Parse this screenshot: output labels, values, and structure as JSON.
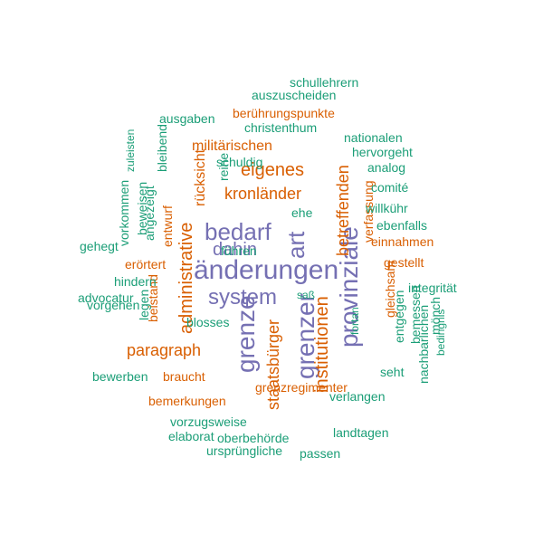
{
  "colors": {
    "purple": "#7570b3",
    "orange": "#d95f02",
    "teal": "#1b9e77"
  },
  "words": [
    "änderungen",
    "system",
    "bedarf",
    "art",
    "grenze",
    "grenzer",
    "provinziale",
    "dahin",
    "staatsbürger",
    "institutionen",
    "administrative",
    "betreffenden",
    "eigenes",
    "kronländer",
    "paragraph",
    "rücksicht",
    "militärischen",
    "berührungspunkte",
    "beistand",
    "gestellt",
    "einnahmen",
    "verfassung",
    "grenzregimenter",
    "bemerkungen",
    "braucht",
    "entwurf",
    "erörtert",
    "gleichsam",
    "nachbarlichen",
    "mönch",
    "bedingnis",
    "schuldig",
    "nationalen",
    "christenthum",
    "auszuscheiden",
    "schullehrern",
    "ausgaben",
    "hervorgeht",
    "analog",
    "comité",
    "ebenfalls",
    "integrität",
    "willkühr",
    "verlangen",
    "vorzugsweise",
    "elaborat",
    "oberbehörde",
    "ursprüngliche",
    "passen",
    "landtagen",
    "gehegt",
    "vorgehen",
    "advocatur",
    "hindern",
    "blosses",
    "bewerben",
    "bleibend",
    "reine",
    "führen",
    "ehe",
    "fortan",
    "saß",
    "entgegen",
    "bemessen",
    "seht",
    "legen",
    "vorkommen",
    "beweisen",
    "angezeigt",
    "zuleisten"
  ]
}
